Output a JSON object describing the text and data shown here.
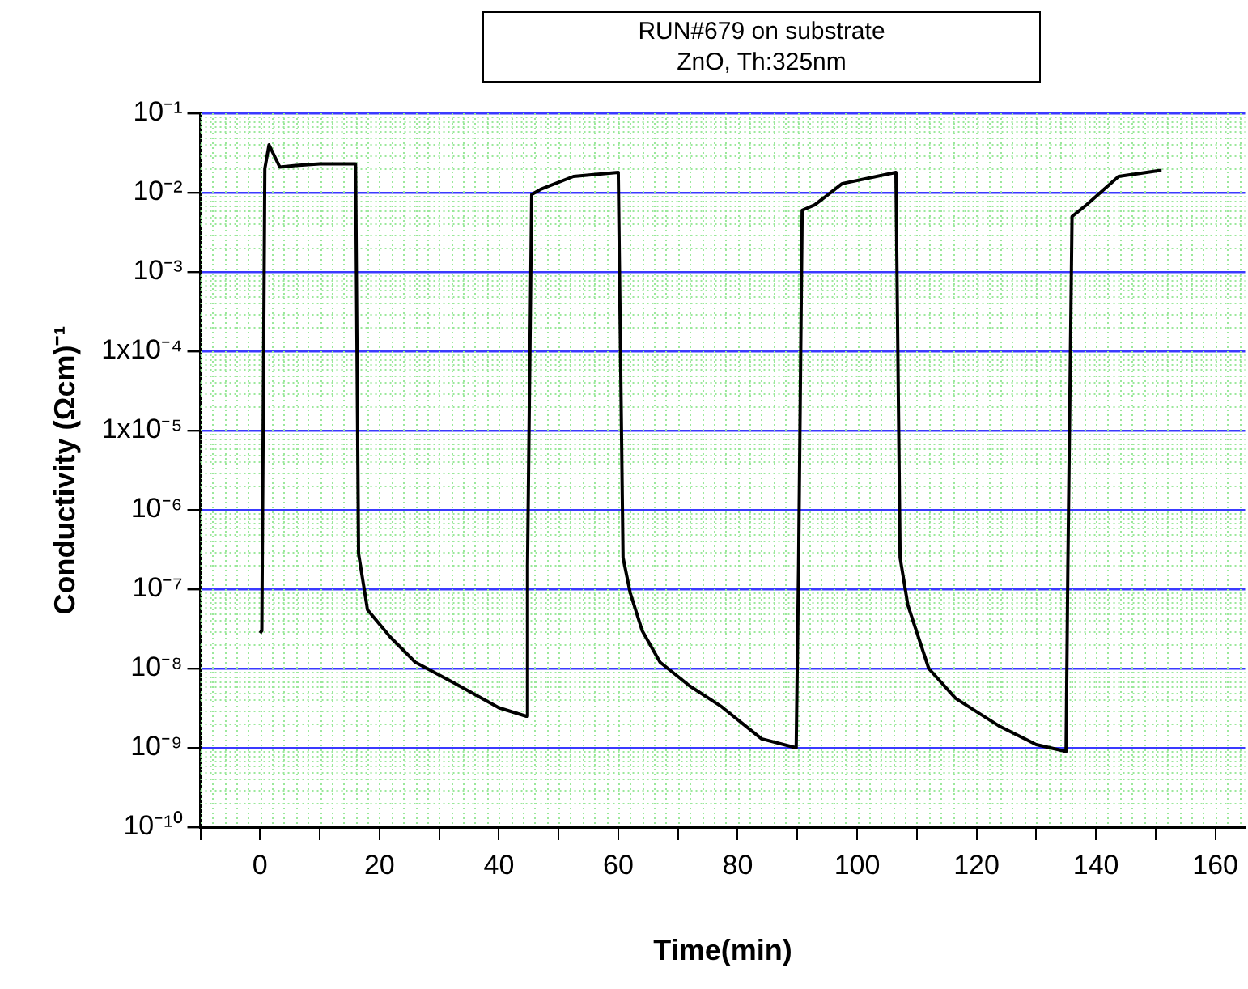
{
  "chart_data": {
    "type": "line",
    "title": "RUN#679 on substrate",
    "subtitle": "ZnO, Th:325nm",
    "xlabel": "Time(min)",
    "ylabel": "Conductivity (Ωcm)⁻¹",
    "log": "y",
    "grid": true,
    "legend": false,
    "marker": "none",
    "line_style": "solid",
    "xlim": [
      -10,
      165
    ],
    "xticks": [
      {
        "value": -10,
        "label": null
      },
      0,
      {
        "value": 10,
        "label": null
      },
      20,
      {
        "value": 30,
        "label": null
      },
      40,
      {
        "value": 50,
        "label": null
      },
      60,
      {
        "value": 70,
        "label": null
      },
      80,
      {
        "value": 90,
        "label": null
      },
      100,
      {
        "value": 110,
        "label": null
      },
      120,
      {
        "value": 130,
        "label": null
      },
      140,
      {
        "value": 150,
        "label": null
      },
      160
    ],
    "ylim": [
      1e-10,
      0.1
    ],
    "yticks": [
      {
        "value": 1e-10,
        "label": "10⁻¹⁰"
      },
      {
        "value": 1e-09,
        "label": "10⁻⁹"
      },
      {
        "value": 1e-08,
        "label": "10⁻⁸"
      },
      {
        "value": 1e-07,
        "label": "10⁻⁷"
      },
      {
        "value": 1e-06,
        "label": "10⁻⁶"
      },
      {
        "value": 1e-05,
        "label": "1x10⁻⁵"
      },
      {
        "value": 0.0001,
        "label": "1x10⁻⁴"
      },
      {
        "value": 0.001,
        "label": "10⁻³"
      },
      {
        "value": 0.01,
        "label": "10⁻²"
      },
      {
        "value": 0.1,
        "label": "10⁻¹"
      }
    ],
    "series": [
      {
        "color": "#000000",
        "x": [
          0,
          0.3,
          0.8,
          1.5,
          3.3,
          6,
          10,
          16,
          16.5,
          18,
          21.8,
          26,
          32.6,
          40,
          44.6,
          44.8,
          45.5,
          47,
          52.5,
          60,
          60.8,
          62,
          64,
          67,
          72,
          77.3,
          84,
          89.8,
          90.2,
          90.8,
          92.9,
          97.5,
          106.5,
          107.2,
          108.5,
          112,
          116.5,
          123.7,
          130,
          135,
          135.3,
          136,
          138.4,
          143.8,
          150.6,
          151
        ],
        "values": [
          2.8e-08,
          3e-08,
          0.02,
          0.04,
          0.021,
          0.022,
          0.023,
          0.023,
          2.8e-07,
          5.5e-08,
          2.5e-08,
          1.2e-08,
          6.5e-09,
          3.2e-09,
          2.5e-09,
          2e-07,
          0.0095,
          0.011,
          0.016,
          0.018,
          2.5e-07,
          9e-08,
          3e-08,
          1.2e-08,
          6e-09,
          3.3e-09,
          1.3e-09,
          1e-09,
          2e-07,
          0.006,
          0.007,
          0.013,
          0.018,
          2.5e-07,
          6.3e-08,
          1e-08,
          4.2e-09,
          1.9e-09,
          1.1e-09,
          9e-10,
          2e-07,
          0.005,
          0.007,
          0.016,
          0.019,
          0.019
        ]
      }
    ]
  }
}
